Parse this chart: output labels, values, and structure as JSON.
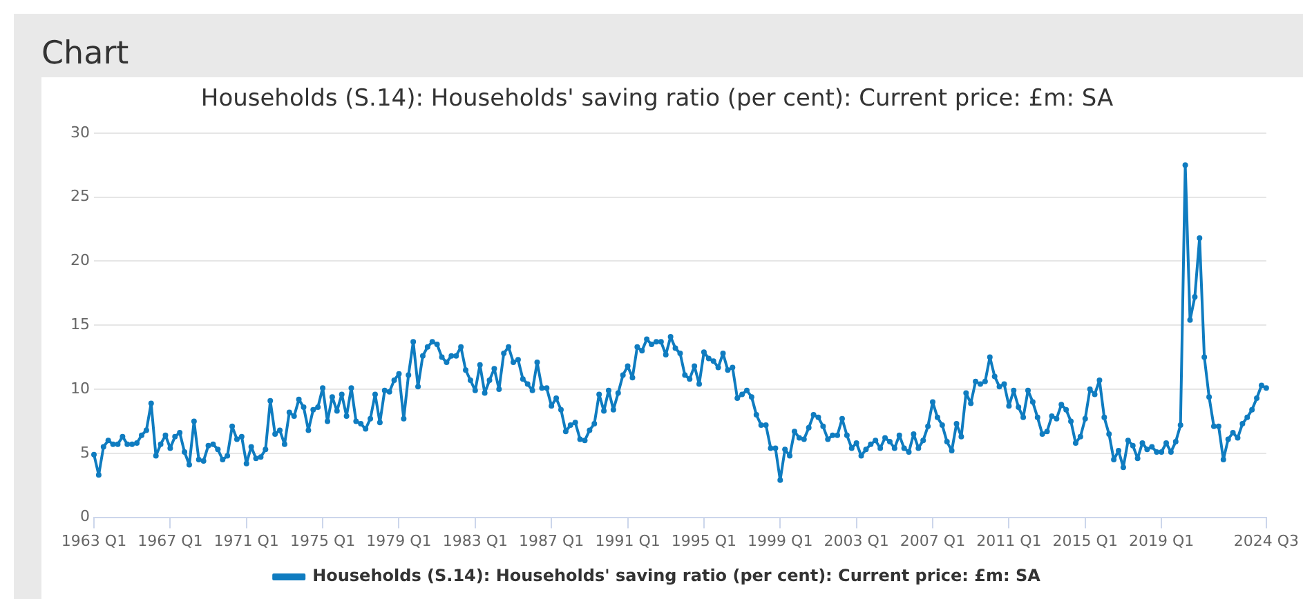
{
  "chart_data": {
    "type": "line",
    "title": "Households (S.14): Households' saving ratio (per cent): Current price: £m: SA",
    "annotations": [
      "Chart"
    ],
    "categories": [
      "1963 Q1",
      null,
      null,
      null,
      null,
      null,
      null,
      null,
      null,
      null,
      null,
      null,
      null,
      null,
      null,
      null,
      "1967 Q1",
      null,
      null,
      null,
      null,
      null,
      null,
      null,
      null,
      null,
      null,
      null,
      null,
      null,
      null,
      null,
      "1971 Q1",
      null,
      null,
      null,
      null,
      null,
      null,
      null,
      null,
      null,
      null,
      null,
      null,
      null,
      null,
      null,
      "1975 Q1",
      null,
      null,
      null,
      null,
      null,
      null,
      null,
      null,
      null,
      null,
      null,
      null,
      null,
      null,
      null,
      "1979 Q1",
      null,
      null,
      null,
      null,
      null,
      null,
      null,
      null,
      null,
      null,
      null,
      null,
      null,
      null,
      null,
      "1983 Q1",
      null,
      null,
      null,
      null,
      null,
      null,
      null,
      null,
      null,
      null,
      null,
      null,
      null,
      null,
      null,
      "1987 Q1",
      null,
      null,
      null,
      null,
      null,
      null,
      null,
      null,
      null,
      null,
      null,
      null,
      null,
      null,
      null,
      "1991 Q1",
      null,
      null,
      null,
      null,
      null,
      null,
      null,
      null,
      null,
      null,
      null,
      null,
      null,
      null,
      null,
      "1995 Q1",
      null,
      null,
      null,
      null,
      null,
      null,
      null,
      null,
      null,
      null,
      null,
      null,
      null,
      null,
      null,
      "1999 Q1",
      null,
      null,
      null,
      null,
      null,
      null,
      null,
      null,
      null,
      null,
      null,
      null,
      null,
      null,
      null,
      "2003 Q1",
      null,
      null,
      null,
      null,
      null,
      null,
      null,
      null,
      null,
      null,
      null,
      null,
      null,
      null,
      null,
      "2007 Q1",
      null,
      null,
      null,
      null,
      null,
      null,
      null,
      null,
      null,
      null,
      null,
      null,
      null,
      null,
      null,
      "2011 Q1",
      null,
      null,
      null,
      null,
      null,
      null,
      null,
      null,
      null,
      null,
      null,
      null,
      null,
      null,
      null,
      "2015 Q1",
      null,
      null,
      null,
      null,
      null,
      null,
      null,
      null,
      null,
      null,
      null,
      null,
      null,
      null,
      null,
      "2019 Q1",
      null,
      null,
      null,
      null,
      null,
      null,
      null,
      null,
      null,
      null,
      null,
      null,
      null,
      null,
      null,
      null,
      null,
      null,
      null,
      null,
      null,
      "2024 Q3"
    ],
    "series": [
      {
        "name": "Households (S.14): Households' saving ratio (per cent): Current price: £m: SA",
        "color": "#0f7cc0",
        "values": [
          4.9,
          3.3,
          5.5,
          6.0,
          5.7,
          5.7,
          6.3,
          5.7,
          5.7,
          5.8,
          6.4,
          6.8,
          8.9,
          4.8,
          5.7,
          6.4,
          5.4,
          6.3,
          6.6,
          5.1,
          4.1,
          7.5,
          4.5,
          4.4,
          5.6,
          5.7,
          5.3,
          4.5,
          4.8,
          7.1,
          6.1,
          6.3,
          4.2,
          5.5,
          4.6,
          4.7,
          5.3,
          9.1,
          6.5,
          6.8,
          5.7,
          8.2,
          7.9,
          9.2,
          8.6,
          6.8,
          8.4,
          8.6,
          10.1,
          7.5,
          9.4,
          8.3,
          9.6,
          7.9,
          10.1,
          7.5,
          7.3,
          6.9,
          7.7,
          9.6,
          7.4,
          9.9,
          9.8,
          10.7,
          11.2,
          7.7,
          11.1,
          13.7,
          10.2,
          12.6,
          13.3,
          13.7,
          13.5,
          12.5,
          12.1,
          12.6,
          12.6,
          13.3,
          11.5,
          10.7,
          9.9,
          11.9,
          9.7,
          10.7,
          11.6,
          10.0,
          12.8,
          13.3,
          12.1,
          12.3,
          10.8,
          10.4,
          9.9,
          12.1,
          10.1,
          10.1,
          8.7,
          9.3,
          8.4,
          6.7,
          7.2,
          7.4,
          6.1,
          6.0,
          6.8,
          7.3,
          9.6,
          8.3,
          9.9,
          8.4,
          9.7,
          11.1,
          11.8,
          10.9,
          13.3,
          13.0,
          13.9,
          13.5,
          13.7,
          13.7,
          12.7,
          14.1,
          13.2,
          12.8,
          11.1,
          10.8,
          11.8,
          10.4,
          12.9,
          12.4,
          12.2,
          11.7,
          12.8,
          11.5,
          11.7,
          9.3,
          9.6,
          9.9,
          9.4,
          8.0,
          7.2,
          7.2,
          5.4,
          5.4,
          2.9,
          5.3,
          4.8,
          6.7,
          6.2,
          6.1,
          7.0,
          8.0,
          7.8,
          7.1,
          6.1,
          6.4,
          6.4,
          7.7,
          6.4,
          5.4,
          5.8,
          4.8,
          5.3,
          5.7,
          6.0,
          5.4,
          6.2,
          5.9,
          5.4,
          6.4,
          5.4,
          5.1,
          6.5,
          5.4,
          6.0,
          7.1,
          9.0,
          7.8,
          7.2,
          5.9,
          5.2,
          7.3,
          6.3,
          9.7,
          8.9,
          10.6,
          10.4,
          10.6,
          12.5,
          11.0,
          10.2,
          10.4,
          8.7,
          9.9,
          8.6,
          7.8,
          9.9,
          9.0,
          7.8,
          6.5,
          6.7,
          7.9,
          7.7,
          8.8,
          8.4,
          7.5,
          5.8,
          6.3,
          7.7,
          10.0,
          9.6,
          10.7,
          7.8,
          6.5,
          4.5,
          5.2,
          3.9,
          6.0,
          5.6,
          4.6,
          5.8,
          5.3,
          5.5,
          5.1,
          5.1,
          5.8,
          5.1,
          5.9,
          7.2,
          27.5,
          15.4,
          17.2,
          21.8,
          12.5,
          9.4,
          7.1,
          7.1,
          4.5,
          6.1,
          6.6,
          6.2,
          7.3,
          7.8,
          8.4,
          9.3,
          10.3,
          10.1
        ]
      }
    ],
    "ylim": [
      0,
      30
    ],
    "yticks": [
      0,
      5,
      10,
      15,
      20,
      25,
      30
    ],
    "grid": "y",
    "legend": "bottom",
    "marker": "circle",
    "line_style": "solid"
  }
}
